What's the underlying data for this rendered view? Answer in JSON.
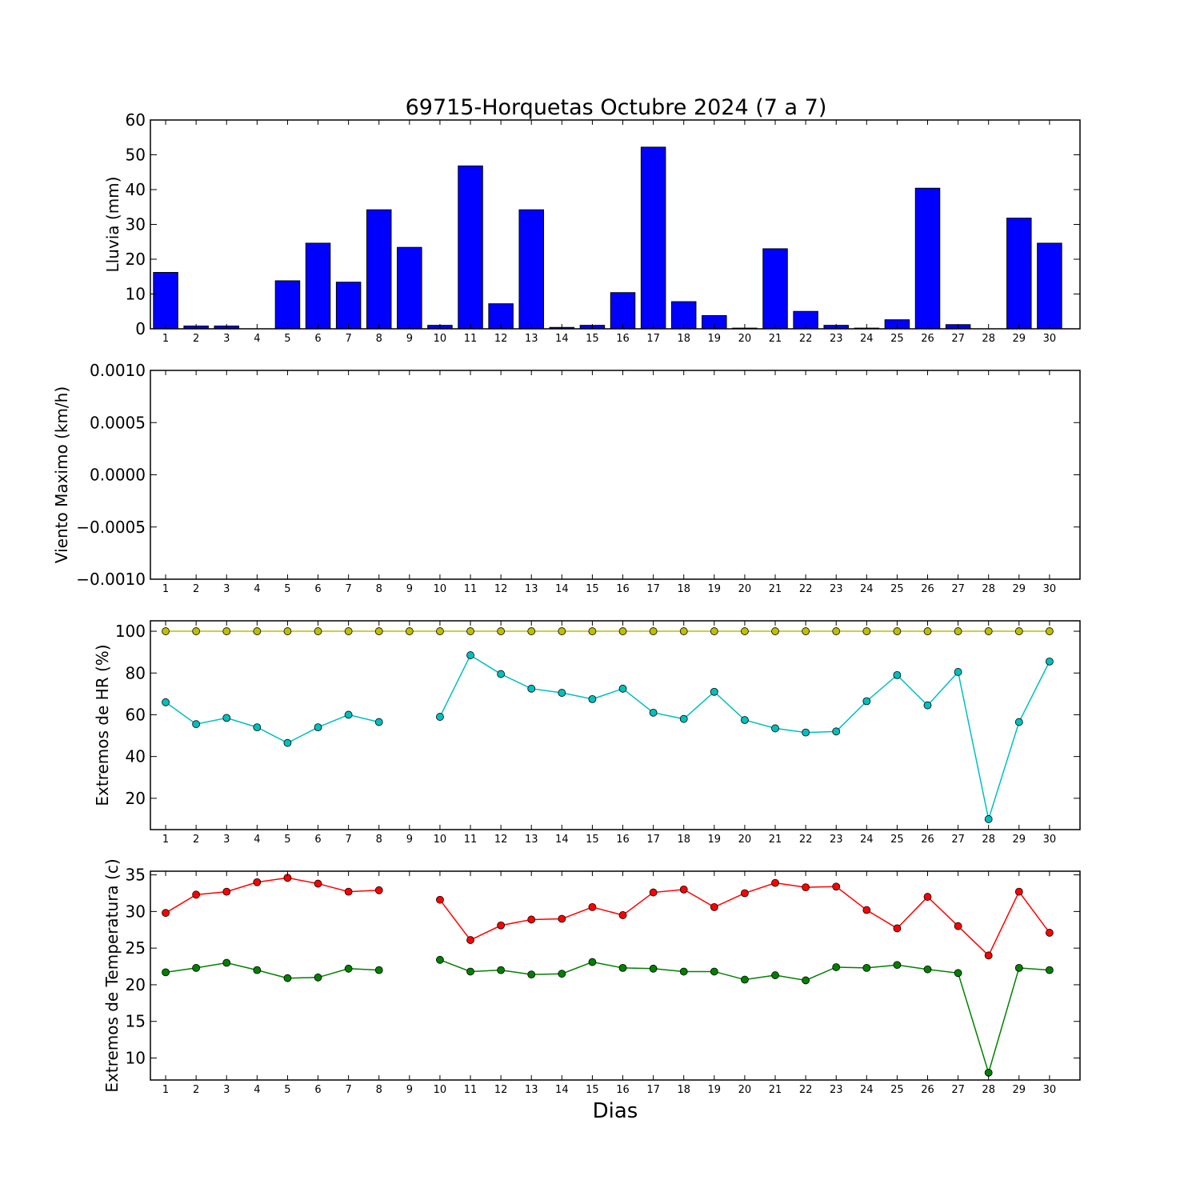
{
  "figure": {
    "title": "69715-Horquetas Octubre 2024  (7 a 7)",
    "xlabel": "Dias"
  },
  "chart_data": [
    {
      "type": "bar",
      "ylabel": "Lluvia (mm)",
      "ylim": [
        0,
        60
      ],
      "yticks": [
        "0",
        "10",
        "20",
        "30",
        "40",
        "50",
        "60"
      ],
      "categories": [
        "1",
        "2",
        "3",
        "4",
        "5",
        "6",
        "7",
        "8",
        "9",
        "10",
        "11",
        "12",
        "13",
        "14",
        "15",
        "16",
        "17",
        "18",
        "19",
        "20",
        "21",
        "22",
        "23",
        "24",
        "25",
        "26",
        "27",
        "28",
        "29",
        "30"
      ],
      "values": [
        16.2,
        0.8,
        0.8,
        0,
        13.8,
        24.6,
        13.4,
        34.2,
        23.4,
        1.0,
        46.8,
        7.2,
        34.2,
        0.4,
        1.0,
        10.4,
        52.2,
        7.8,
        3.8,
        0.2,
        23.0,
        5.0,
        1.0,
        0.2,
        2.6,
        40.4,
        1.2,
        0,
        31.8,
        24.6
      ],
      "color": "#0000ff",
      "grid": false
    },
    {
      "type": "line",
      "ylabel": "Viento Maximo (km/h)",
      "ylim": [
        -0.001,
        0.001
      ],
      "yticks": [
        "0.0010",
        "0.0005",
        "0.0000",
        "−0.0005",
        "−0.0010"
      ],
      "categories": [
        "1",
        "2",
        "3",
        "4",
        "5",
        "6",
        "7",
        "8",
        "9",
        "10",
        "11",
        "12",
        "13",
        "14",
        "15",
        "16",
        "17",
        "18",
        "19",
        "20",
        "21",
        "22",
        "23",
        "24",
        "25",
        "26",
        "27",
        "28",
        "29",
        "30"
      ],
      "series": [],
      "grid": false
    },
    {
      "type": "line",
      "ylabel": "Extremos de HR (%)",
      "ylim": [
        5,
        105
      ],
      "yticks": [
        "20",
        "40",
        "60",
        "80",
        "100"
      ],
      "categories": [
        "1",
        "2",
        "3",
        "4",
        "5",
        "6",
        "7",
        "8",
        "9",
        "10",
        "11",
        "12",
        "13",
        "14",
        "15",
        "16",
        "17",
        "18",
        "19",
        "20",
        "21",
        "22",
        "23",
        "24",
        "25",
        "26",
        "27",
        "28",
        "29",
        "30"
      ],
      "series": [
        {
          "color": "#bfbf00",
          "values": [
            100,
            100,
            100,
            100,
            100,
            100,
            100,
            100,
            100,
            100,
            100,
            100,
            100,
            100,
            100,
            100,
            100,
            100,
            100,
            100,
            100,
            100,
            100,
            100,
            100,
            100,
            100,
            100,
            100,
            100
          ]
        },
        {
          "color": "#00bfbf",
          "values": [
            66,
            55.5,
            58.5,
            54,
            46.5,
            54,
            60,
            56.5,
            null,
            59,
            88.5,
            79.5,
            72.5,
            70.5,
            67.5,
            72.5,
            61,
            58,
            71,
            57.5,
            53.5,
            51.5,
            52,
            66.5,
            79,
            64.5,
            80.5,
            10,
            56.5,
            85.5
          ]
        }
      ],
      "grid": false
    },
    {
      "type": "line",
      "ylabel": "Extremos de Temperatura (c)",
      "ylim": [
        7,
        35.5
      ],
      "yticks": [
        "10",
        "15",
        "20",
        "25",
        "30",
        "35"
      ],
      "categories": [
        "1",
        "2",
        "3",
        "4",
        "5",
        "6",
        "7",
        "8",
        "9",
        "10",
        "11",
        "12",
        "13",
        "14",
        "15",
        "16",
        "17",
        "18",
        "19",
        "20",
        "21",
        "22",
        "23",
        "24",
        "25",
        "26",
        "27",
        "28",
        "29",
        "30"
      ],
      "series": [
        {
          "color": "#ff0000",
          "values": [
            29.8,
            32.3,
            32.7,
            34,
            34.6,
            33.8,
            32.7,
            32.9,
            null,
            31.6,
            26.1,
            28.1,
            28.9,
            29,
            30.6,
            29.5,
            32.6,
            33,
            30.6,
            32.5,
            33.9,
            33.3,
            33.4,
            30.2,
            27.7,
            32,
            28,
            24,
            32.7,
            27.1
          ]
        },
        {
          "color": "#008000",
          "values": [
            21.7,
            22.3,
            23,
            22,
            20.9,
            21,
            22.2,
            22,
            null,
            23.4,
            21.8,
            22,
            21.4,
            21.5,
            23.1,
            22.3,
            22.2,
            21.8,
            21.8,
            20.7,
            21.3,
            20.6,
            22.4,
            22.3,
            22.7,
            22.1,
            21.6,
            8,
            22.3,
            22
          ]
        }
      ],
      "grid": false
    }
  ]
}
